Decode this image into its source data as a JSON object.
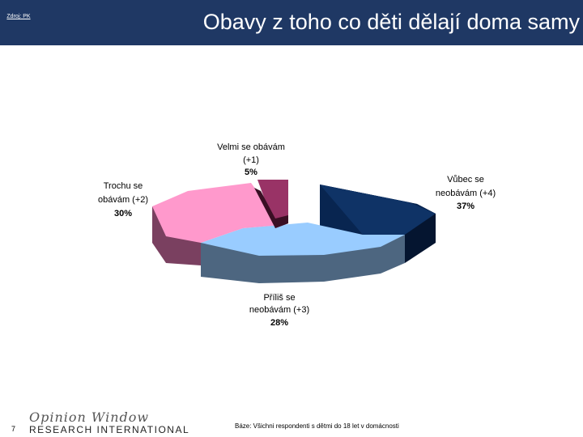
{
  "header": {
    "source_link": "Zdroj: PK",
    "title": "Obavy z toho co děti dělají doma samy"
  },
  "chart_data": {
    "type": "pie",
    "style": "3d",
    "slices": [
      {
        "label": "Vůbec se neobávám (+4)",
        "value": 37,
        "display": "37%",
        "color": "#0f3366"
      },
      {
        "label": "Příliš se neobávám (+3)",
        "value": 28,
        "display": "28%",
        "color": "#99ccff"
      },
      {
        "label": "Trochu se obávám (+2)",
        "value": 30,
        "display": "30%",
        "color": "#ff99cc"
      },
      {
        "label": "Velmi se obávám (+1)",
        "value": 5,
        "display": "5%",
        "color": "#993366"
      }
    ],
    "labels": {
      "s1": [
        "Vůbec se",
        "neobávám (+4)"
      ],
      "s2": [
        "Příliš se",
        "neobávám (+3)"
      ],
      "s3": [
        "Trochu se",
        "obávám (+2)"
      ],
      "s4": [
        "Velmi se obávám",
        "(+1)"
      ]
    }
  },
  "footer": {
    "page_number": "7",
    "logo_line1": "Opinion Window",
    "logo_line2": "RESEARCH INTERNATIONAL",
    "base_note": "Báze: Všichni respondenti s dětmi do 18 let v domácnosti"
  }
}
